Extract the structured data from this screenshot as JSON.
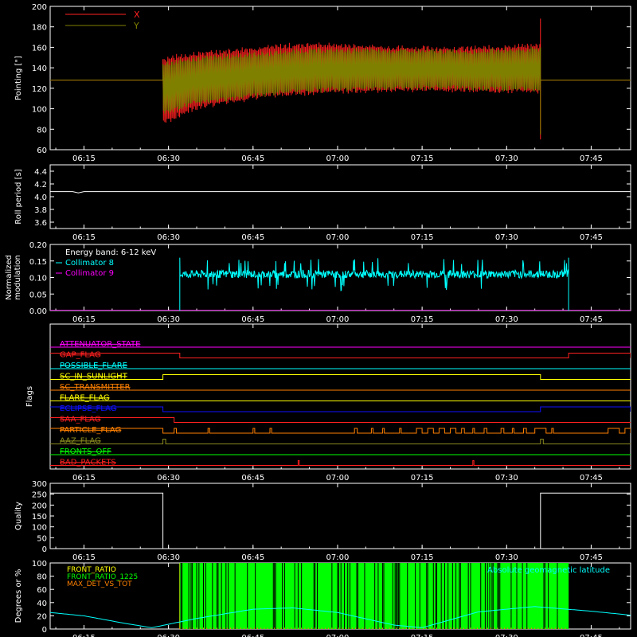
{
  "time_ticks": [
    "06:15",
    "06:30",
    "06:45",
    "07:00",
    "07:15",
    "07:30",
    "07:45"
  ],
  "colors": {
    "background": "#000000",
    "axis": "#ffffff",
    "red": "#ff2020",
    "olive": "#808000",
    "cyan": "#00ffff",
    "magenta": "#ff00ff",
    "orange": "#ff8000",
    "yellow": "#ffff00",
    "blue": "#1010ff",
    "green": "#00ff00",
    "dark_olive": "#8a8a20",
    "white": "#ffffff"
  },
  "chart_data": [
    {
      "id": "pointing",
      "type": "line",
      "ylabel": "Pointing [\"]",
      "xlim": [
        "06:09",
        "07:52"
      ],
      "ylim": [
        60,
        200
      ],
      "yticks": [
        "60",
        "80",
        "100",
        "120",
        "140",
        "160",
        "180",
        "200"
      ],
      "legend": {
        "placement": "top-left",
        "entries": [
          "X",
          "Y"
        ]
      },
      "series": [
        {
          "name": "X",
          "color": "#ff2020",
          "x": [
            "06:09",
            "06:28",
            "06:29",
            "06:35",
            "06:45",
            "06:55",
            "07:05",
            "07:15",
            "07:25",
            "07:36",
            "07:36",
            "07:52"
          ],
          "upper": [
            128,
            128,
            150,
            155,
            160,
            164,
            162,
            160,
            160,
            163,
            188,
            128
          ],
          "lower": [
            128,
            128,
            85,
            100,
            110,
            115,
            117,
            118,
            117,
            116,
            70,
            128
          ]
        },
        {
          "name": "Y",
          "color": "#808000",
          "x": [
            "06:09",
            "06:28",
            "06:29",
            "06:35",
            "06:45",
            "06:55",
            "07:05",
            "07:15",
            "07:25",
            "07:36",
            "07:36",
            "07:52"
          ],
          "upper": [
            128,
            128,
            145,
            150,
            154,
            158,
            158,
            157,
            157,
            159,
            160,
            128
          ],
          "lower": [
            128,
            128,
            95,
            105,
            112,
            117,
            119,
            120,
            119,
            118,
            75,
            128
          ]
        }
      ]
    },
    {
      "id": "roll",
      "type": "line",
      "ylabel": "Roll period [s]",
      "ylim": [
        3.5,
        4.5
      ],
      "yticks": [
        "3.6",
        "3.8",
        "4.0",
        "4.2",
        "4.4"
      ],
      "series": [
        {
          "color": "#ffffff",
          "x": [
            "06:09",
            "06:13",
            "06:14",
            "06:15",
            "07:52"
          ],
          "y": [
            4.08,
            4.08,
            4.06,
            4.08,
            4.08
          ]
        }
      ]
    },
    {
      "id": "modulation",
      "type": "line",
      "ylabel_lines": [
        "Normalized",
        "modulation"
      ],
      "ylim": [
        0.0,
        0.2
      ],
      "yticks": [
        "0.00",
        "0.05",
        "0.10",
        "0.15",
        "0.20"
      ],
      "annotation": "Energy band: 6-12 keV",
      "legend": {
        "placement": "top-left",
        "entries": [
          "Collimator 8",
          "Collimator 9"
        ]
      },
      "series": [
        {
          "name": "Collimator 8",
          "color": "#00ffff",
          "x_range": [
            "06:32",
            "07:41"
          ],
          "mean": 0.11,
          "spread": 0.012,
          "spike_max": 0.16
        },
        {
          "name": "Collimator 9",
          "color": "#ff00ff",
          "x": [
            "06:09",
            "07:52"
          ],
          "y": [
            0.0,
            0.0
          ]
        }
      ]
    },
    {
      "id": "flags",
      "type": "line",
      "ylabel": "Flags",
      "rows": [
        {
          "name": "ATTENUATOR_STATE",
          "color": "#ff00ff",
          "high_intervals": []
        },
        {
          "name": "GAP_FLAG",
          "color": "#ff2020",
          "high_intervals": [
            [
              "06:09",
              "06:32"
            ],
            [
              "07:41",
              "07:52"
            ]
          ]
        },
        {
          "name": "POSSIBLE_FLARE",
          "color": "#00ffff",
          "high_intervals": []
        },
        {
          "name": "SC_IN_SUNLIGHT",
          "color": "#ffff00",
          "high_intervals": [
            [
              "06:29",
              "07:36"
            ]
          ]
        },
        {
          "name": "SC_TRANSMITTER",
          "color": "#ff8000",
          "high_intervals": []
        },
        {
          "name": "FLARE_FLAG",
          "color": "#ffff00",
          "high_intervals": []
        },
        {
          "name": "ECLIPSE_FLAG",
          "color": "#1010ff",
          "high_intervals": [
            [
              "06:09",
              "06:29"
            ],
            [
              "07:36",
              "07:52"
            ]
          ]
        },
        {
          "name": "SAA_FLAG",
          "color": "#ff2020",
          "high_intervals": [
            [
              "06:09",
              "06:31"
            ]
          ]
        },
        {
          "name": "PARTICLE_FLAG",
          "color": "#ff8000",
          "high_intervals": [
            [
              "06:09",
              "06:29"
            ],
            [
              "06:31",
              "06:31.4"
            ],
            [
              "06:37",
              "06:37.3"
            ],
            [
              "06:45",
              "06:45.3"
            ],
            [
              "06:48",
              "06:48.3"
            ],
            [
              "07:03",
              "07:03.5"
            ],
            [
              "07:06",
              "07:06.3"
            ],
            [
              "07:08",
              "07:08.3"
            ],
            [
              "07:11",
              "07:11.3"
            ],
            [
              "07:14",
              "07:15"
            ],
            [
              "07:16",
              "07:17"
            ],
            [
              "07:18",
              "07:19"
            ],
            [
              "07:20",
              "07:21"
            ],
            [
              "07:22",
              "07:22.5"
            ],
            [
              "07:24",
              "07:24.3"
            ],
            [
              "07:26",
              "07:26.5"
            ],
            [
              "07:29",
              "07:29.5"
            ],
            [
              "07:31",
              "07:31.3"
            ],
            [
              "07:33",
              "07:33.5"
            ],
            [
              "07:35",
              "07:37"
            ],
            [
              "07:38",
              "07:38.3"
            ],
            [
              "07:48",
              "07:50"
            ],
            [
              "07:51",
              "07:52"
            ]
          ]
        },
        {
          "name": "AAZ_FLAG",
          "color": "#8a8a20",
          "high_intervals": [
            [
              "06:29",
              "06:29.5"
            ],
            [
              "07:36",
              "07:36.5"
            ]
          ]
        },
        {
          "name": "FRONTS_OFF",
          "color": "#00ff00",
          "high_intervals": []
        },
        {
          "name": "BAD_PACKETS",
          "color": "#ff2020",
          "high_intervals": [
            [
              "06:53",
              "06:53.2"
            ],
            [
              "07:24",
              "07:24.2"
            ]
          ]
        }
      ]
    },
    {
      "id": "quality",
      "type": "line",
      "ylabel": "Quality",
      "ylim": [
        0,
        300
      ],
      "yticks": [
        "0",
        "50",
        "100",
        "150",
        "200",
        "250",
        "300"
      ],
      "series": [
        {
          "color": "#ffffff",
          "x": [
            "06:09",
            "06:29",
            "06:29",
            "07:36",
            "07:36",
            "07:52"
          ],
          "y": [
            255,
            255,
            0,
            0,
            255,
            255
          ]
        }
      ]
    },
    {
      "id": "geo",
      "type": "line",
      "ylabel": "Degrees or %",
      "ylim": [
        0,
        100
      ],
      "yticks": [
        "0",
        "20",
        "40",
        "60",
        "80",
        "100"
      ],
      "legend": {
        "placement": "top-left",
        "entries": [
          "FRONT_RATIO",
          "FRONT_RATIO_1225",
          "MAX_DET_VS_TOT"
        ]
      },
      "annotation": "Absolute geomagnetic latitude",
      "series": [
        {
          "name": "FRONT_RATIO",
          "color": "#ffff00",
          "x_range": [
            "06:32",
            "07:41"
          ]
        },
        {
          "name": "FRONT_RATIO_1225",
          "color": "#00ff00",
          "x_range": [
            "06:32",
            "07:41"
          ],
          "y": 100
        },
        {
          "name": "MAX_DET_VS_TOT",
          "color": "#ff8000",
          "x_range": [
            "06:32",
            "07:41"
          ]
        },
        {
          "name": "Absolute geomagnetic latitude",
          "color": "#00ffff",
          "x": [
            "06:09",
            "06:15",
            "06:22",
            "06:27",
            "06:35",
            "06:45",
            "06:52",
            "07:00",
            "07:10",
            "07:15",
            "07:25",
            "07:35",
            "07:45",
            "07:52"
          ],
          "y": [
            25,
            20,
            9,
            2,
            16,
            30,
            32,
            25,
            6,
            2,
            26,
            34,
            27,
            21
          ]
        }
      ]
    }
  ]
}
